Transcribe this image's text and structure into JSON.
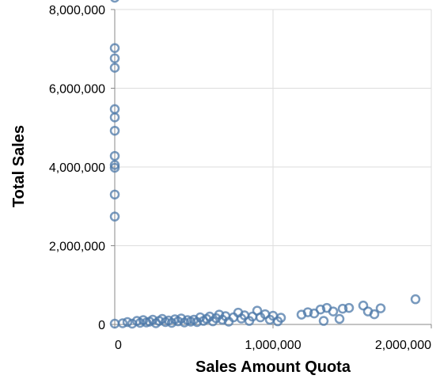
{
  "chart_data": {
    "type": "scatter",
    "xlabel": "Sales Amount Quota",
    "ylabel": "Total Sales",
    "xlim": [
      0,
      2000000
    ],
    "ylim": [
      0,
      8000000
    ],
    "x_ticks": [
      0,
      1000000,
      2000000
    ],
    "x_tick_labels": [
      "0",
      "1,000,000",
      "2,000,000"
    ],
    "y_ticks": [
      0,
      2000000,
      4000000,
      6000000,
      8000000
    ],
    "y_tick_labels": [
      "0",
      "2,000,000",
      "4,000,000",
      "6,000,000",
      "8,000,000"
    ],
    "grid": true,
    "marker_color": "#4c78a8",
    "points": [
      {
        "x": 0,
        "y": 8300000
      },
      {
        "x": 0,
        "y": 7020000
      },
      {
        "x": 0,
        "y": 6760000
      },
      {
        "x": 0,
        "y": 6520000
      },
      {
        "x": 0,
        "y": 5470000
      },
      {
        "x": 0,
        "y": 5260000
      },
      {
        "x": 0,
        "y": 4920000
      },
      {
        "x": 0,
        "y": 4280000
      },
      {
        "x": 0,
        "y": 4050000
      },
      {
        "x": 0,
        "y": 3980000
      },
      {
        "x": 0,
        "y": 3300000
      },
      {
        "x": 0,
        "y": 2740000
      },
      {
        "x": 0,
        "y": 20000
      },
      {
        "x": 50000,
        "y": 30000
      },
      {
        "x": 80000,
        "y": 60000
      },
      {
        "x": 110000,
        "y": 20000
      },
      {
        "x": 140000,
        "y": 90000
      },
      {
        "x": 160000,
        "y": 40000
      },
      {
        "x": 180000,
        "y": 110000
      },
      {
        "x": 200000,
        "y": 50000
      },
      {
        "x": 220000,
        "y": 70000
      },
      {
        "x": 240000,
        "y": 120000
      },
      {
        "x": 260000,
        "y": 30000
      },
      {
        "x": 280000,
        "y": 90000
      },
      {
        "x": 300000,
        "y": 140000
      },
      {
        "x": 320000,
        "y": 60000
      },
      {
        "x": 340000,
        "y": 100000
      },
      {
        "x": 360000,
        "y": 40000
      },
      {
        "x": 380000,
        "y": 130000
      },
      {
        "x": 400000,
        "y": 80000
      },
      {
        "x": 420000,
        "y": 150000
      },
      {
        "x": 440000,
        "y": 50000
      },
      {
        "x": 460000,
        "y": 110000
      },
      {
        "x": 480000,
        "y": 70000
      },
      {
        "x": 500000,
        "y": 120000
      },
      {
        "x": 520000,
        "y": 60000
      },
      {
        "x": 540000,
        "y": 180000
      },
      {
        "x": 560000,
        "y": 90000
      },
      {
        "x": 580000,
        "y": 140000
      },
      {
        "x": 600000,
        "y": 200000
      },
      {
        "x": 620000,
        "y": 80000
      },
      {
        "x": 640000,
        "y": 160000
      },
      {
        "x": 660000,
        "y": 250000
      },
      {
        "x": 680000,
        "y": 120000
      },
      {
        "x": 700000,
        "y": 210000
      },
      {
        "x": 720000,
        "y": 70000
      },
      {
        "x": 750000,
        "y": 180000
      },
      {
        "x": 780000,
        "y": 300000
      },
      {
        "x": 800000,
        "y": 150000
      },
      {
        "x": 820000,
        "y": 230000
      },
      {
        "x": 850000,
        "y": 90000
      },
      {
        "x": 870000,
        "y": 200000
      },
      {
        "x": 900000,
        "y": 350000
      },
      {
        "x": 920000,
        "y": 180000
      },
      {
        "x": 950000,
        "y": 260000
      },
      {
        "x": 980000,
        "y": 120000
      },
      {
        "x": 1000000,
        "y": 220000
      },
      {
        "x": 1030000,
        "y": 80000
      },
      {
        "x": 1050000,
        "y": 170000
      },
      {
        "x": 1180000,
        "y": 250000
      },
      {
        "x": 1220000,
        "y": 310000
      },
      {
        "x": 1260000,
        "y": 280000
      },
      {
        "x": 1300000,
        "y": 380000
      },
      {
        "x": 1320000,
        "y": 90000
      },
      {
        "x": 1340000,
        "y": 420000
      },
      {
        "x": 1380000,
        "y": 330000
      },
      {
        "x": 1420000,
        "y": 140000
      },
      {
        "x": 1440000,
        "y": 400000
      },
      {
        "x": 1480000,
        "y": 420000
      },
      {
        "x": 1570000,
        "y": 480000
      },
      {
        "x": 1600000,
        "y": 330000
      },
      {
        "x": 1640000,
        "y": 260000
      },
      {
        "x": 1680000,
        "y": 410000
      },
      {
        "x": 1900000,
        "y": 640000
      }
    ]
  }
}
